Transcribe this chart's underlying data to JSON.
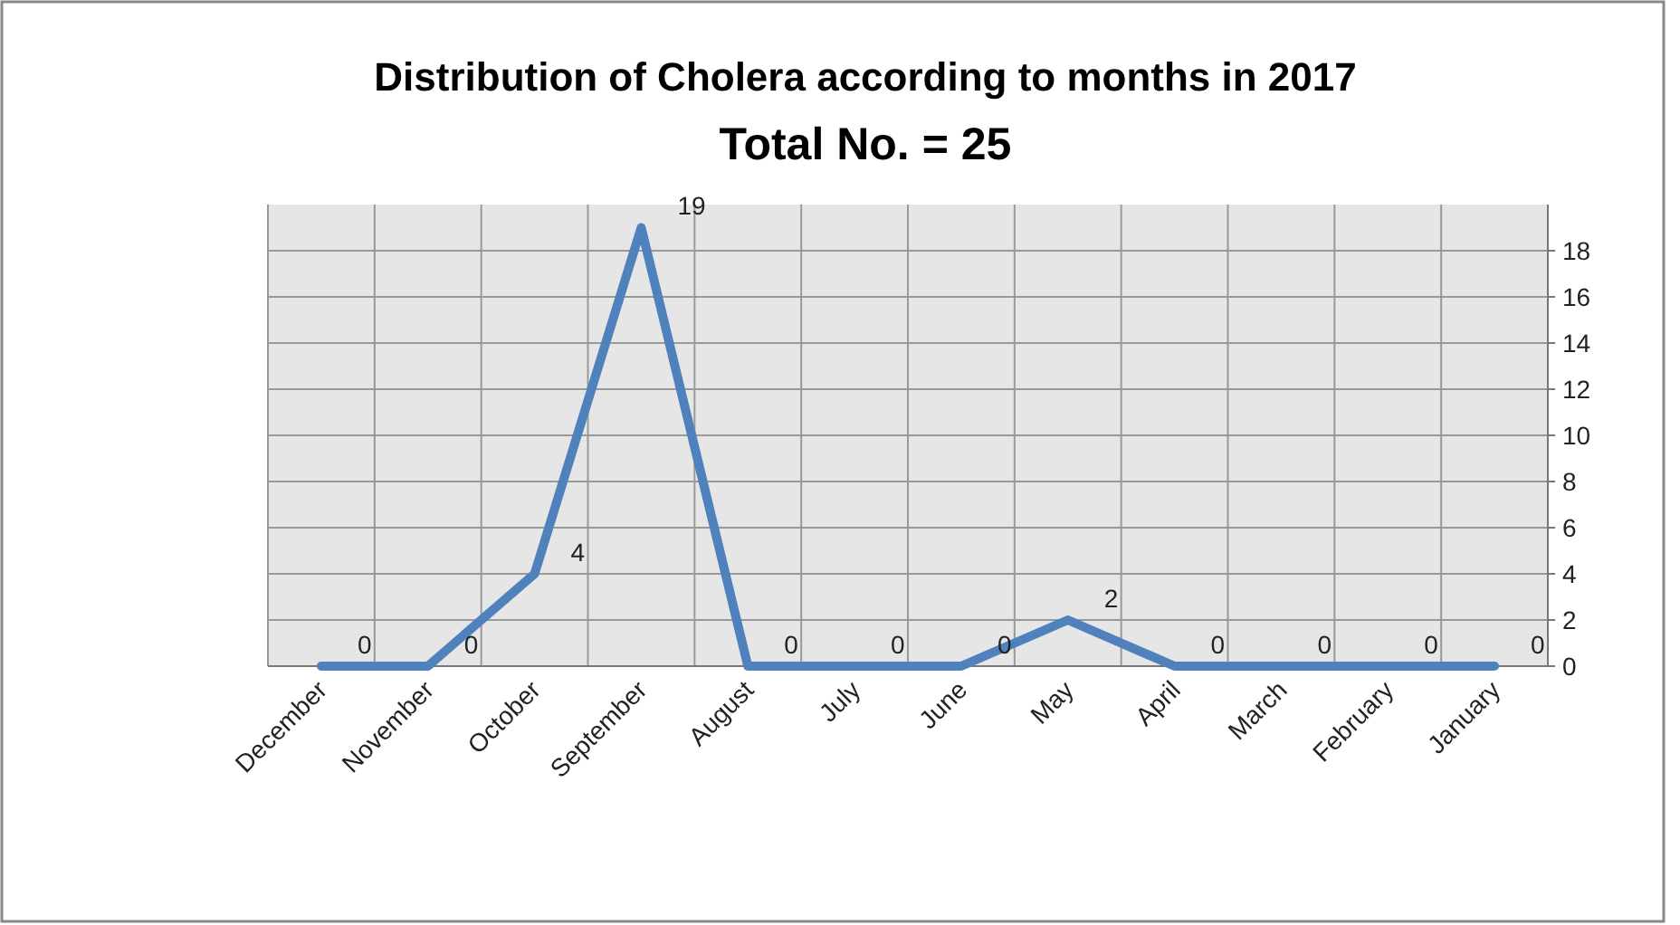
{
  "chart_data": {
    "type": "line",
    "title": "Distribution of Cholera according to months in 2017",
    "subtitle": "Total No. = 25",
    "categories": [
      "December",
      "November",
      "October",
      "September",
      "August",
      "July",
      "June",
      "May",
      "April",
      "March",
      "February",
      "January"
    ],
    "series": [
      {
        "color": "#4f81bd",
        "values": [
          0,
          0,
          4,
          19,
          0,
          0,
          0,
          2,
          0,
          0,
          0,
          0
        ]
      }
    ],
    "ylim": [
      0,
      20
    ],
    "yticks": [
      0,
      2,
      4,
      6,
      8,
      10,
      12,
      14,
      16,
      18
    ],
    "grid": true,
    "data_labels": true,
    "marker": "none",
    "line_style": "solid"
  }
}
